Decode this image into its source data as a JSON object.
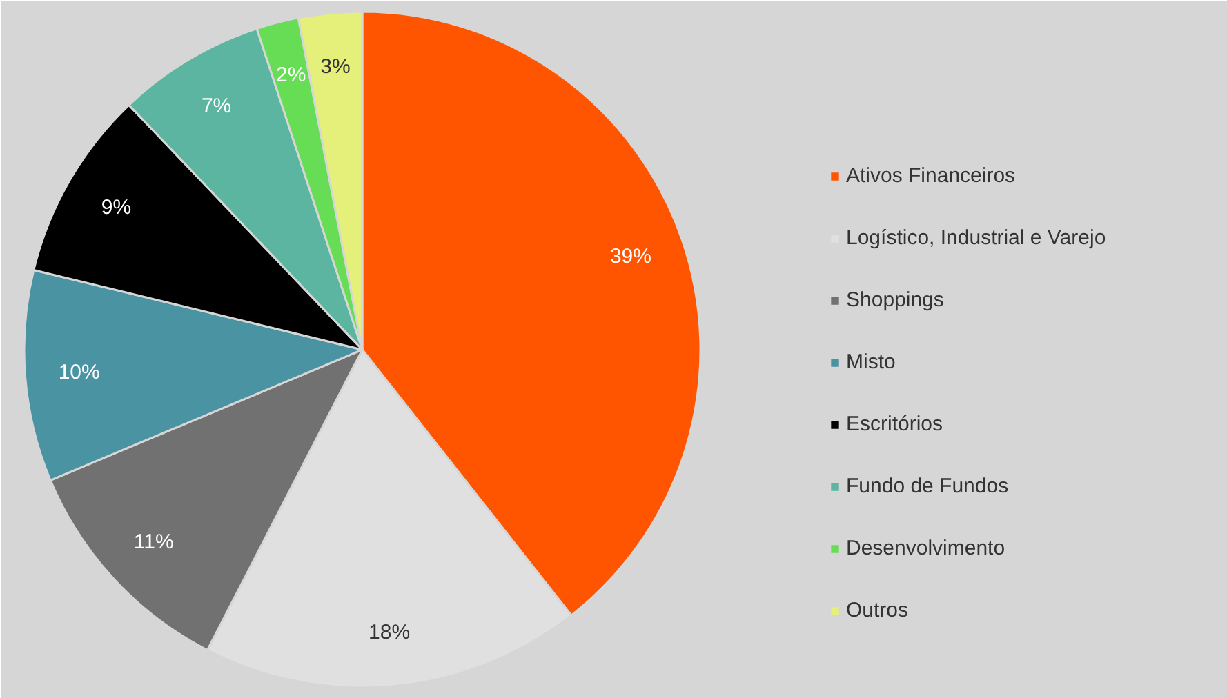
{
  "chart_data": {
    "type": "pie",
    "categories": [
      "Ativos Financeiros",
      "Logístico, Industrial e Varejo",
      "Shoppings",
      "Misto",
      "Escritórios",
      "Fundo de Fundos",
      "Desenvolvimento",
      "Outros"
    ],
    "values": [
      39,
      18,
      11,
      10,
      9,
      7,
      2,
      3
    ],
    "colors": [
      "#ff5500",
      "#e0e0e0",
      "#717171",
      "#4a93a3",
      "#000000",
      "#5bb5a0",
      "#66dd55",
      "#e5f07a"
    ],
    "value_labels": [
      "39%",
      "18%",
      "11%",
      "10%",
      "9%",
      "7%",
      "2%",
      "3%"
    ],
    "legend": "right"
  }
}
